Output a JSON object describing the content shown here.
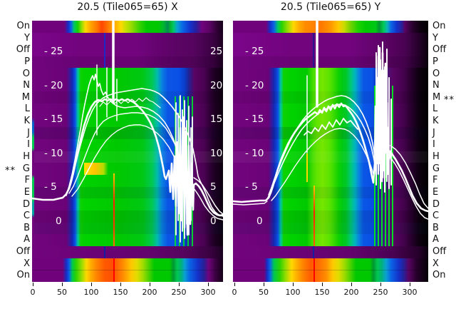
{
  "figure": {
    "star_marker": "**",
    "row_labels_left": [
      "On",
      "Y",
      "Off",
      "P",
      "O",
      "N",
      "M",
      "L",
      "K",
      "J",
      "I",
      "H",
      "G",
      "F",
      "E",
      "D",
      "C",
      "B",
      "A",
      "Off",
      "X",
      "On"
    ],
    "row_labels_right": [
      "On",
      "Y",
      "Off",
      "P",
      "O",
      "N",
      "M",
      "L",
      "K",
      "J",
      "I",
      "H",
      "G",
      "F",
      "E",
      "D",
      "C",
      "B",
      "A",
      "Off",
      "X",
      "On"
    ],
    "starred_row_left": "G",
    "starred_row_right": "M",
    "panels": [
      {
        "title": "20.5 (Tile065=65) X",
        "x_tick_labels": [
          "0",
          "50",
          "100",
          "150",
          "200",
          "250",
          "300"
        ],
        "y_tick_labels": [
          "- 25",
          "- 20",
          "- 15",
          "- 10",
          "- 5",
          "0"
        ],
        "y_tick_labels_right": [
          "25",
          "20",
          "15",
          "10",
          "5",
          "0"
        ]
      },
      {
        "title": "20.5 (Tile065=65) Y",
        "x_tick_labels": [
          "0",
          "50",
          "100",
          "150",
          "200",
          "250",
          "300"
        ],
        "y_tick_labels": [
          "- 25",
          "- 20",
          "- 15",
          "- 10",
          "- 5",
          "0"
        ],
        "y_tick_labels_right": []
      }
    ]
  },
  "chart_data": [
    {
      "type": "heatmap",
      "title": "20.5 (Tile065=65) X",
      "x_range": [
        0,
        325
      ],
      "x_ticks": [
        0,
        50,
        100,
        150,
        200,
        250,
        300
      ],
      "overlay_y_ticks": [
        25,
        20,
        15,
        10,
        5,
        0
      ],
      "rows": [
        "On",
        "Y",
        "Off",
        "P",
        "O",
        "N",
        "M",
        "L",
        "K",
        "J",
        "I",
        "H",
        "G",
        "F",
        "E",
        "D",
        "C",
        "B",
        "A",
        "Off",
        "X",
        "On"
      ],
      "starred_row": "G",
      "row_appearance": {
        "On_top": "rainbow strip (blue-green-yellow-orange center) x 65..300, purple elsewhere",
        "Y_Off_P": "purple band full width, dark blue tick near x 122",
        "O_to_A": "main block: purple margin, blue edge x 70..78, green body x 80..225, blue band x 225..264, noise stripes x 243..276, purple/dark right margin",
        "G": "yellow-orange patch x 92..125",
        "Off_bottom": "purple band",
        "X_On_bottom": "rainbow strip with red line at x 139, orange-red center"
      },
      "overlay_lines": {
        "n_lines": 8,
        "color": "#ffffff",
        "mean_profile_x": [
          0,
          40,
          55,
          70,
          80,
          90,
          100,
          115,
          130,
          145,
          160,
          175,
          190,
          205,
          220,
          232,
          240,
          258,
          275,
          290,
          305,
          322
        ],
        "mean_profile_y": [
          0.4,
          0.5,
          1.5,
          5,
          9,
          13,
          15.5,
          17.9,
          16.8,
          16.9,
          17.1,
          16.6,
          15.8,
          14.4,
          12.2,
          8.5,
          5.0,
          8.0,
          3.5,
          0.5,
          -1.5,
          -2.2
        ],
        "noise_region_x": [
          243,
          276
        ],
        "noise_amplitude": [
          -6,
          16
        ],
        "vertical_spike_x": 138,
        "sub_peak": {
          "x": 105,
          "y": 18.0
        }
      },
      "red_line_x": 139
    },
    {
      "type": "heatmap",
      "title": "20.5 (Tile065=65) Y",
      "x_range": [
        0,
        334
      ],
      "x_ticks": [
        0,
        50,
        100,
        150,
        200,
        250,
        300
      ],
      "overlay_y_ticks": [
        25,
        20,
        15,
        10,
        5,
        0
      ],
      "rows": [
        "On",
        "Y",
        "Off",
        "P",
        "O",
        "N",
        "M",
        "L",
        "K",
        "J",
        "I",
        "H",
        "G",
        "F",
        "E",
        "D",
        "C",
        "B",
        "A",
        "Off",
        "X",
        "On"
      ],
      "starred_row": "M",
      "row_appearance": {
        "On_top": "rainbow strip x 62..285, black fade at right edge",
        "Y_Off_P": "purple band, darker to right",
        "O_to_A": "main block: blue edge x 70..80, green body x 82..200 with yellow-green center column x 138..168, blue band x 200..243, noise stripes x 243..272, purple then black right margin",
        "Off_bottom": "purple band",
        "X_On_bottom": "rainbow strip with red line at x 137"
      },
      "overlay_lines": {
        "n_lines": 8,
        "color": "#ffffff",
        "mean_profile_x": [
          0,
          40,
          57,
          70,
          85,
          100,
          115,
          130,
          145,
          160,
          175,
          190,
          205,
          215,
          225,
          240,
          255,
          270,
          285,
          300,
          315,
          330
        ],
        "mean_profile_y": [
          -0.1,
          0.0,
          0.8,
          3,
          6.5,
          9.5,
          12,
          13.8,
          15.2,
          16.3,
          16.8,
          15.9,
          13.8,
          11.5,
          8.5,
          4.5,
          12.0,
          6.0,
          2.5,
          0.5,
          -0.8,
          -1.4
        ],
        "noise_region_x": [
          243,
          272
        ],
        "noise_amplitude": [
          2,
          24
        ],
        "vertical_spike_x": 143,
        "wiggly_peak": true
      },
      "red_line_x": 137
    }
  ],
  "palette": {
    "purple": "#72047e",
    "green": "#00c800",
    "blue": "#0a50e6",
    "orange": "#ff8c00",
    "red": "#ff1e00",
    "line_color": "#ffffff",
    "background": "#ffffff",
    "text": "#111111"
  }
}
